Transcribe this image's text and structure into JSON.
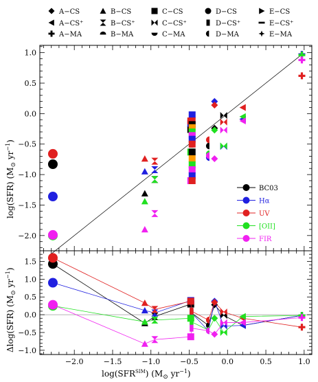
{
  "chart_data": [
    {
      "type": "scatter",
      "panel": "top",
      "xlabel": "log(SFR^SIM) (M_sun yr^-1)",
      "ylabel": "log(SFR)  (M_sun yr^-1)",
      "xlim": [
        -2.45,
        1.1
      ],
      "ylim": [
        -2.25,
        1.12
      ],
      "x_ticks": [
        -2.0,
        -1.5,
        -1.0,
        -0.5,
        0.0,
        0.5,
        1.0
      ],
      "x_tick_labels": [
        "−2.0",
        "−1.5",
        "−1.0",
        "−0.5",
        "0.0",
        "0.5",
        "1.0"
      ],
      "y_ticks": [
        -2.0,
        -1.5,
        -1.0,
        -0.5,
        0.0,
        0.5,
        1.0
      ],
      "y_tick_labels": [
        "−2.0",
        "−1.5",
        "−1.0",
        "−0.5",
        "0.0",
        "0.5",
        "1.0"
      ],
      "reference_line": {
        "x": [
          -2.3,
          0.98
        ],
        "y": [
          -2.3,
          0.98
        ]
      },
      "legend_position": "right-middle",
      "series": [
        {
          "name": "BC03",
          "color": "#000000",
          "points": [
            [
              -2.28,
              -0.83
            ],
            [
              -1.08,
              -1.31
            ],
            [
              -0.95,
              -1.08
            ],
            [
              -0.48,
              -0.26
            ],
            [
              -0.47,
              -0.5
            ],
            [
              -0.25,
              -0.53
            ],
            [
              -0.17,
              -0.24
            ],
            [
              -0.05,
              -0.03
            ],
            [
              0.2,
              -0.09
            ],
            [
              0.97,
              0.97
            ]
          ]
        },
        {
          "name": "Hα",
          "color": "#2020e0",
          "points": [
            [
              -2.28,
              -1.36
            ],
            [
              -1.08,
              -0.95
            ],
            [
              -0.95,
              -0.92
            ],
            [
              -0.48,
              -0.16
            ],
            [
              -0.47,
              -0.38
            ],
            [
              -0.25,
              -0.72
            ],
            [
              -0.17,
              0.2
            ],
            [
              -0.05,
              -0.54
            ],
            [
              0.2,
              -0.09
            ],
            [
              0.97,
              0.97
            ]
          ]
        },
        {
          "name": "UV",
          "color": "#e02020",
          "points": [
            [
              -2.28,
              -0.66
            ],
            [
              -1.08,
              -0.74
            ],
            [
              -0.95,
              -0.78
            ],
            [
              -0.48,
              -0.12
            ],
            [
              -0.47,
              -0.41
            ],
            [
              -0.25,
              -0.43
            ],
            [
              -0.17,
              0.14
            ],
            [
              -0.05,
              -0.14
            ],
            [
              0.2,
              0.1
            ],
            [
              0.97,
              0.62
            ]
          ]
        },
        {
          "name": "[OII]",
          "color": "#20e020",
          "points": [
            [
              -2.28,
              -2.0
            ],
            [
              -1.08,
              -1.44
            ],
            [
              -0.95,
              -1.08
            ],
            [
              -0.48,
              -0.63
            ],
            [
              -0.47,
              -0.74
            ],
            [
              -0.25,
              -0.66
            ],
            [
              -0.17,
              -0.27
            ],
            [
              -0.05,
              -0.53
            ],
            [
              0.2,
              -0.05
            ],
            [
              0.97,
              0.96
            ]
          ]
        },
        {
          "name": "FIR",
          "color": "#f020f0",
          "points": [
            [
              -2.28,
              -1.99
            ],
            [
              -1.08,
              -1.9
            ],
            [
              -0.95,
              -1.64
            ],
            [
              -0.48,
              -1.1
            ],
            [
              -0.47,
              -0.84
            ],
            [
              -0.25,
              -0.69
            ],
            [
              -0.17,
              -0.74
            ],
            [
              -0.05,
              -0.27
            ],
            [
              0.2,
              -0.12
            ],
            [
              0.97,
              0.88
            ]
          ]
        }
      ],
      "dense_column": {
        "x": -0.48,
        "y_values": [
          -0.02,
          -0.12,
          -0.18,
          -0.23,
          -0.3,
          -0.36,
          -0.42,
          -0.5,
          -0.63,
          -0.74,
          -0.84,
          -0.92,
          -1.02,
          -1.1
        ],
        "color_order": [
          "#2020e0",
          "#e02020",
          "#000000",
          "#ff9a00",
          "#20e020",
          "#f020f0"
        ]
      }
    },
    {
      "type": "line",
      "panel": "bottom",
      "xlabel": "log(SFR^SIM) (M_sun yr^-1)",
      "ylabel": "Δlog(SFR)  (M_sun yr^-1)",
      "xlim": [
        -2.45,
        1.1
      ],
      "ylim": [
        -1.12,
        1.8
      ],
      "x_ticks": [
        -2.0,
        -1.5,
        -1.0,
        -0.5,
        0.0,
        0.5,
        1.0
      ],
      "x_tick_labels": [
        "−2.0",
        "−1.5",
        "−1.0",
        "−0.5",
        "0.0",
        "0.5",
        "1.0"
      ],
      "y_ticks": [
        -1.0,
        -0.5,
        0.0,
        0.5,
        1.0,
        1.5
      ],
      "y_tick_labels": [
        "−1.0",
        "−0.5",
        "0.0",
        "0.5",
        "1.0",
        "1.5"
      ],
      "zero_line": 0.0,
      "series": [
        {
          "name": "BC03",
          "color": "#000000",
          "points": [
            [
              -2.28,
              1.43
            ],
            [
              -1.08,
              -0.24
            ],
            [
              -0.95,
              -0.05
            ],
            [
              -0.48,
              0.3
            ],
            [
              -0.47,
              0.05
            ],
            [
              -0.25,
              -0.3
            ],
            [
              -0.17,
              0.28
            ],
            [
              -0.05,
              -0.02
            ],
            [
              0.2,
              -0.3
            ],
            [
              0.97,
              -0.02
            ]
          ]
        },
        {
          "name": "Hα",
          "color": "#2020e0",
          "points": [
            [
              -2.28,
              0.9
            ],
            [
              -1.08,
              0.12
            ],
            [
              -0.95,
              0.05
            ],
            [
              -0.48,
              0.4
            ],
            [
              -0.47,
              0.05
            ],
            [
              -0.25,
              -0.45
            ],
            [
              -0.17,
              0.38
            ],
            [
              -0.05,
              -0.32
            ],
            [
              0.2,
              -0.3
            ],
            [
              0.97,
              -0.02
            ]
          ]
        },
        {
          "name": "UV",
          "color": "#e02020",
          "points": [
            [
              -2.28,
              1.6
            ],
            [
              -1.08,
              0.33
            ],
            [
              -0.95,
              0.15
            ],
            [
              -0.48,
              0.38
            ],
            [
              -0.47,
              0.1
            ],
            [
              -0.25,
              -0.15
            ],
            [
              -0.17,
              0.35
            ],
            [
              -0.05,
              0.08
            ],
            [
              0.2,
              -0.1
            ],
            [
              0.97,
              -0.35
            ]
          ]
        },
        {
          "name": "[OII]",
          "color": "#20e020",
          "points": [
            [
              -2.28,
              0.25
            ],
            [
              -1.08,
              -0.2
            ],
            [
              -0.95,
              -0.15
            ],
            [
              -0.48,
              -0.1
            ],
            [
              -0.47,
              -0.2
            ],
            [
              -0.25,
              -0.43
            ],
            [
              -0.17,
              -0.1
            ],
            [
              -0.05,
              -0.5
            ],
            [
              0.2,
              -0.05
            ],
            [
              0.97,
              -0.02
            ]
          ]
        },
        {
          "name": "FIR",
          "color": "#f020f0",
          "points": [
            [
              -2.28,
              0.28
            ],
            [
              -1.08,
              -0.82
            ],
            [
              -0.95,
              -0.7
            ],
            [
              -0.48,
              -0.62
            ],
            [
              -0.47,
              -0.38
            ],
            [
              -0.25,
              -0.45
            ],
            [
              -0.17,
              -0.55
            ],
            [
              -0.05,
              -0.22
            ],
            [
              0.2,
              -0.22
            ],
            [
              0.97,
              -0.08
            ]
          ]
        }
      ]
    }
  ],
  "marker_key": {
    "rows": [
      [
        {
          "symbol": "diamond",
          "label": "A−CS"
        },
        {
          "symbol": "triangle-up",
          "label": "B−CS"
        },
        {
          "symbol": "square",
          "label": "C−CS"
        },
        {
          "symbol": "circle",
          "label": "D−CS"
        },
        {
          "symbol": "triangle-right",
          "label": "E−CS"
        }
      ],
      [
        {
          "symbol": "triangle-left",
          "label": "A−CS⁺"
        },
        {
          "symbol": "hourglass",
          "label": "B−CS⁺"
        },
        {
          "symbol": "bowtie",
          "label": "C−CS⁺"
        },
        {
          "symbol": "half-square",
          "label": "D−CS⁺"
        },
        {
          "symbol": "dash",
          "label": "E−CS⁺"
        }
      ],
      [
        {
          "symbol": "cross",
          "label": "A−MA"
        },
        {
          "symbol": "half-circle-up",
          "label": "B−MA"
        },
        {
          "symbol": "half-circle-down",
          "label": "C−MA"
        },
        {
          "symbol": "half-circle-left",
          "label": "D−MA"
        },
        {
          "symbol": "star4",
          "label": "E−MA"
        }
      ]
    ]
  },
  "legend": [
    {
      "label": "BC03",
      "color": "#000000"
    },
    {
      "label": "Hα",
      "color": "#2020e0"
    },
    {
      "label": "UV",
      "color": "#e02020"
    },
    {
      "label": "[OII]",
      "color": "#20e020"
    },
    {
      "label": "FIR",
      "color": "#f020f0"
    }
  ],
  "labels": {
    "top_ylabel": "log(SFR)  (M",
    "bottom_ylabel": "Δlog(SFR)  (M",
    "ylabel_unit_tail": " yr",
    "ylabel_exp": "−1",
    "ylabel_close": ")",
    "xlabel_prefix": "log(SFR",
    "xlabel_sup": "SIM",
    "xlabel_mid": ") (M",
    "xlabel_tail": " yr",
    "xlabel_exp": "−1",
    "xlabel_close": ")",
    "sun_symbol": "⊙"
  }
}
